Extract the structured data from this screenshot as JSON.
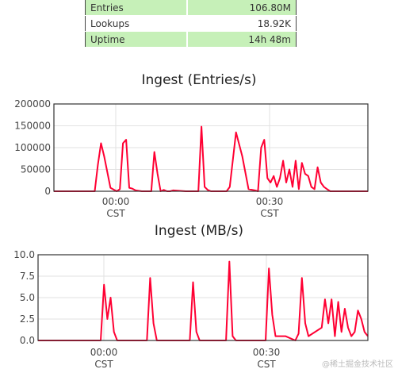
{
  "stats": [
    {
      "label": "Entries",
      "value": "106.80M",
      "highlight": true
    },
    {
      "label": "Lookups",
      "value": "18.92K",
      "highlight": false
    },
    {
      "label": "Uptime",
      "value": "14h 48m",
      "highlight": true
    }
  ],
  "watermark": "@稀土掘金技术社区",
  "chart_data": [
    {
      "type": "line",
      "title": "Ingest (Entries/s)",
      "ylim": [
        0,
        200000
      ],
      "yticks": [
        "0",
        "50000",
        "100000",
        "150000",
        "200000"
      ],
      "xticks": [
        {
          "label": "00:00",
          "sub": "CST"
        },
        {
          "label": "00:30",
          "sub": "CST"
        }
      ],
      "color": "#ff0033",
      "series": [
        {
          "x": [
            0,
            7,
            13,
            14,
            15,
            16,
            18,
            20,
            21,
            22,
            23,
            24,
            25,
            26,
            28,
            31,
            32,
            33,
            34,
            35,
            36,
            37,
            38,
            42,
            44,
            46,
            47,
            48,
            49,
            50,
            51,
            52,
            55,
            56,
            58,
            60,
            62,
            64,
            65,
            66,
            67,
            68,
            69,
            70,
            71,
            72,
            73,
            74,
            75,
            76,
            77,
            78,
            79,
            80,
            81,
            82,
            83,
            84,
            85,
            86,
            87,
            88,
            89,
            90,
            91,
            92,
            93,
            94,
            95,
            96,
            97,
            98,
            99,
            100
          ],
          "y": [
            0,
            0,
            0,
            60000,
            110000,
            80000,
            8000,
            0,
            5000,
            110000,
            118000,
            8000,
            6000,
            2000,
            0,
            0,
            90000,
            40000,
            0,
            3000,
            0,
            0,
            2000,
            0,
            0,
            0,
            148000,
            10000,
            3000,
            0,
            0,
            0,
            0,
            10000,
            135000,
            80000,
            5000,
            2000,
            0,
            100000,
            118000,
            30000,
            20000,
            35000,
            10000,
            30000,
            70000,
            20000,
            50000,
            10000,
            70000,
            5000,
            65000,
            40000,
            35000,
            10000,
            5000,
            55000,
            20000,
            10000,
            5000,
            0,
            0,
            0,
            0,
            0,
            0,
            0,
            0,
            0,
            0,
            0,
            0,
            0
          ]
        }
      ]
    },
    {
      "type": "line",
      "title": "Ingest (MB/s)",
      "ylim": [
        0,
        10
      ],
      "yticks": [
        "0.0",
        "2.5",
        "5.0",
        "7.5",
        "10.0"
      ],
      "xticks": [
        {
          "label": "00:00",
          "sub": "CST"
        },
        {
          "label": "00:30",
          "sub": "CST"
        }
      ],
      "color": "#ff0033",
      "series": [
        {
          "x": [
            0,
            10,
            19,
            20,
            21,
            22,
            23,
            24,
            25,
            33,
            34,
            35,
            36,
            37,
            46,
            47,
            48,
            49,
            57,
            58,
            59,
            60,
            61,
            69,
            70,
            71,
            72,
            75,
            78,
            79,
            80,
            81,
            82,
            86,
            87,
            88,
            89,
            90,
            91,
            92,
            93,
            94,
            95,
            96,
            97,
            98,
            99,
            100
          ],
          "y": [
            0,
            0,
            0,
            6.5,
            2.5,
            5.0,
            1.0,
            0,
            0,
            0,
            7.3,
            2.0,
            0,
            0,
            0,
            6.8,
            1.0,
            0,
            0,
            9.2,
            0.5,
            0,
            0,
            0,
            8.4,
            3.0,
            0.5,
            0.5,
            0,
            0.8,
            7.3,
            2.0,
            0.5,
            1.5,
            4.8,
            2.0,
            4.8,
            0.5,
            4.5,
            1.0,
            3.7,
            1.5,
            0.5,
            1.0,
            3.5,
            2.5,
            1.0,
            0.5
          ]
        }
      ]
    }
  ]
}
